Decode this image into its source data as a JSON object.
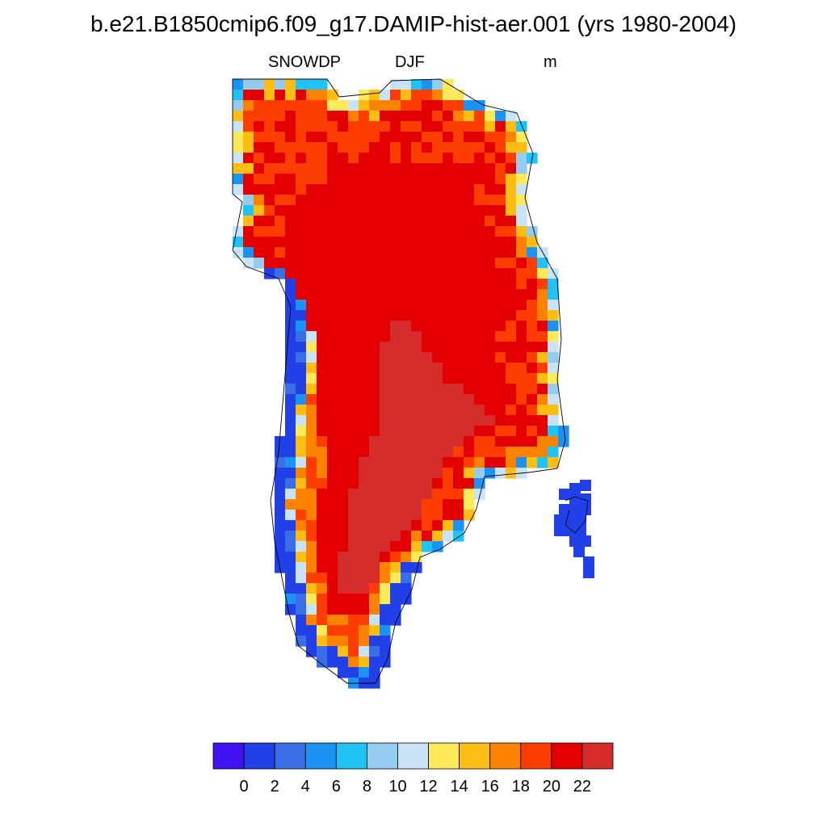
{
  "header": {
    "title": "b.e21.B1850cmip6.f09_g17.DAMIP-hist-aer.001 (yrs 1980-2004)",
    "variable": "SNOWDP",
    "season": "DJF",
    "units": "m"
  },
  "map": {
    "field": "SNOWDP",
    "region": "Greenland",
    "coastline_color": "#000000",
    "missing_color": "#ffffff"
  },
  "colorbar": {
    "colors": [
      "#4013f0",
      "#2240e8",
      "#3a6ee6",
      "#1a93f5",
      "#1fc3f5",
      "#95cbee",
      "#c8e3f5",
      "#fde95a",
      "#fdbd12",
      "#fd8200",
      "#fd3e00",
      "#e40000",
      "#d52c2c"
    ],
    "labels": [
      "0",
      "2",
      "4",
      "6",
      "8",
      "10",
      "12",
      "14",
      "16",
      "18",
      "20",
      "22"
    ]
  },
  "chart_data": {
    "type": "heatmap",
    "title": "b.e21.B1850cmip6.f09_g17.DAMIP-hist-aer.001 (yrs 1980-2004)",
    "variable": "SNOWDP",
    "season": "DJF",
    "units": "m",
    "levels": [
      0,
      2,
      4,
      6,
      8,
      10,
      12,
      14,
      16,
      18,
      20,
      22
    ],
    "description_of_field": "Interior of Greenland at highest bin (>22), surrounded by 20-22 band; coastal margins 14-20 on east, 0-12 on west and south coasts; small island to southeast in 0-2 bin."
  }
}
